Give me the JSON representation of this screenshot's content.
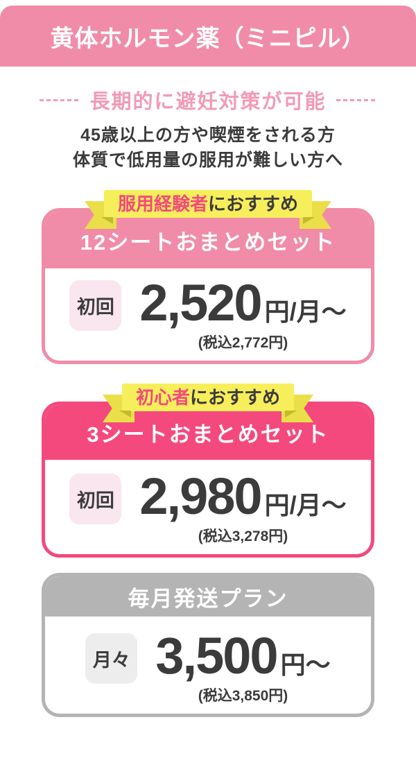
{
  "header": {
    "title": "黄体ホルモン薬（ミニピル）"
  },
  "intro": {
    "tagline": "長期的に避妊対策が可能",
    "description_lines": [
      "45歳以上の方や喫煙をされる方",
      "体質で低用量の服用が難しい方へ"
    ]
  },
  "plans": [
    {
      "ribbon_highlight": "服用経験者",
      "ribbon_rest": "におすすめ",
      "title": "12シートおまとめセット",
      "badge": "初回",
      "price": "2,520",
      "unit": "円/月〜",
      "tax_note": "(税込2,772円)",
      "accent_color": "#f08ca7"
    },
    {
      "ribbon_highlight": "初心者",
      "ribbon_rest": "におすすめ",
      "title": "3シートおまとめセット",
      "badge": "初回",
      "price": "2,980",
      "unit": "円/月〜",
      "tax_note": "(税込3,278円)",
      "accent_color": "#f4497d"
    },
    {
      "title": "毎月発送プラン",
      "badge": "月々",
      "price": "3,500",
      "unit": "円〜",
      "tax_note": "(税込3,850円)",
      "accent_color": "#b4b4b4"
    }
  ],
  "colors": {
    "header_pink": "#f08ca7",
    "rose_pink": "#f4497d",
    "gray": "#b4b4b4",
    "ribbon_yellow": "#f7ee5c",
    "ribbon_tail_yellow": "#ebdf49",
    "ribbon_fold_olive": "#c3b82f",
    "badge_pink_bg": "#f9e6ee",
    "badge_gray_bg": "#ededed",
    "tagline_pink": "#f29ab6",
    "text_dark": "#3b3b3b"
  }
}
